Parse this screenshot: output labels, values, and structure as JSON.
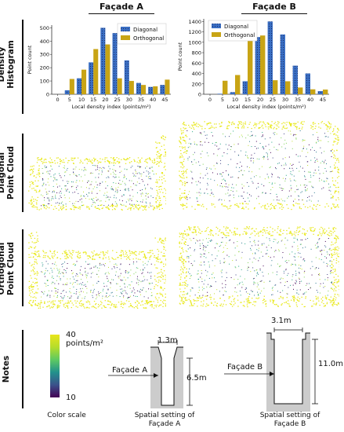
{
  "columns": {
    "a": "Façade A",
    "b": "Façade B"
  },
  "rows": {
    "density_histogram": [
      "Density",
      "Histogram"
    ],
    "diagonal": [
      "Diagonal",
      "Point Cloud"
    ],
    "orthogonal": [
      "Orthogonal",
      "Point Cloud"
    ],
    "notes": "Notes"
  },
  "colors": {
    "diagonal": "#3a6fc4",
    "orthogonal": "#c8a415",
    "cloud_main": "#e8e81a"
  },
  "chart_data": [
    {
      "type": "bar",
      "panel": "Façade A",
      "categories": [
        "0",
        "5",
        "10",
        "15",
        "20",
        "25",
        "30",
        "35",
        "40",
        "45"
      ],
      "series": [
        {
          "name": "Diagonal",
          "values": [
            0,
            30,
            120,
            240,
            500,
            460,
            255,
            85,
            55,
            70
          ]
        },
        {
          "name": "Orthogonal",
          "values": [
            0,
            115,
            185,
            340,
            375,
            120,
            100,
            70,
            60,
            110
          ]
        }
      ],
      "xlabel": "Local density index (points/m²)",
      "ylabel": "Point count",
      "ylim": [
        0,
        520
      ],
      "yticks": [
        0,
        100,
        200,
        300,
        400,
        500
      ],
      "legend": "top-right",
      "grid": false
    },
    {
      "type": "bar",
      "panel": "Façade B",
      "categories": [
        "0",
        "5",
        "10",
        "15",
        "20",
        "25",
        "30",
        "35",
        "40",
        "45"
      ],
      "series": [
        {
          "name": "Diagonal",
          "values": [
            0,
            10,
            40,
            250,
            1100,
            1400,
            1150,
            550,
            400,
            60
          ]
        },
        {
          "name": "Orthogonal",
          "values": [
            0,
            260,
            370,
            1080,
            1130,
            270,
            250,
            130,
            95,
            90
          ]
        }
      ],
      "xlabel": "Local density index (points/m²)",
      "ylabel": "Point count",
      "ylim": [
        0,
        1450
      ],
      "yticks": [
        0,
        200,
        400,
        600,
        800,
        1000,
        1200,
        1400
      ],
      "legend": "top-left",
      "grid": false
    }
  ],
  "notes": {
    "colorscale": {
      "max": "40",
      "unit": "points/m²",
      "min": "10",
      "caption": "Color scale"
    },
    "facade_a": {
      "width": "1.3m",
      "height": "6.5m",
      "label": "Façade A",
      "caption": "Spatial setting of Façade A"
    },
    "facade_b": {
      "width": "3.1m",
      "height": "11.0m",
      "label": "Façade B",
      "caption": "Spatial setting of Façade B"
    }
  }
}
